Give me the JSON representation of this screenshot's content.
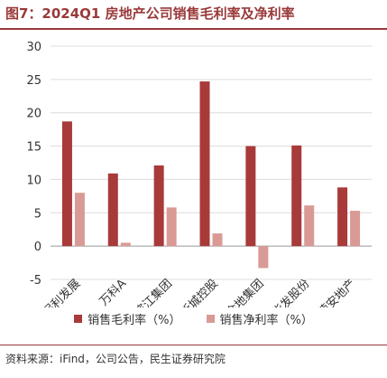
{
  "header": {
    "title": "图7：2024Q1 房地产公司销售毛利率及净利率"
  },
  "footer": {
    "source": "资料来源：iFind，公司公告，民生证券研究院"
  },
  "chart_data": {
    "type": "bar",
    "title": "图7：2024Q1 房地产公司销售毛利率及净利率",
    "xlabel": "",
    "ylabel": "",
    "categories": [
      "保利发展",
      "万科A",
      "滨江集团",
      "新城控股",
      "金地集团",
      "华发股份",
      "荣安地产"
    ],
    "series": [
      {
        "name": "销售毛利率（%）",
        "color": "#a83a3a",
        "values": [
          18.7,
          10.9,
          12.1,
          24.7,
          15.0,
          15.1,
          8.8
        ]
      },
      {
        "name": "销售净利率（%）",
        "color": "#d99a96",
        "values": [
          8.0,
          0.5,
          5.8,
          1.9,
          -3.3,
          6.1,
          5.3
        ]
      }
    ],
    "ylim": [
      -5,
      30
    ],
    "yticks": [
      -5,
      0,
      5,
      10,
      15,
      20,
      25,
      30
    ],
    "grid": true,
    "legend": "bottom"
  }
}
